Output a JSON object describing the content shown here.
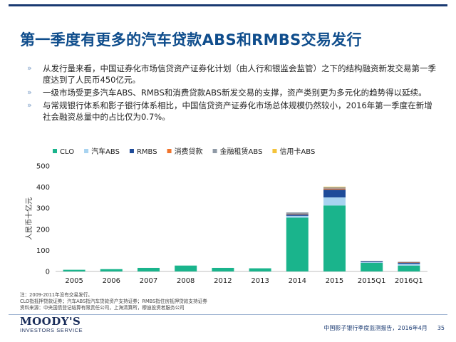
{
  "title": "第一季度有更多的汽车贷款ABS和RMBS交易发行",
  "bullets": [
    "从发行量来看，中国证券化市场信贷资产证券化计划（由人行和银监会监管）之下的结构融资新发交易第一季度达到了人民币450亿元。",
    "一级市场受更多汽车ABS、RMBS和消费贷款ABS新发交易的支撑，资产类别更为多元化的趋势得以延续。",
    "与常规银行体系和影子银行体系相比，中国信贷资产证券化市场总体规模仍然较小，2016年第一季度在新增社会融资总量中的占比仅为0.7%。"
  ],
  "bullet_marker": "»",
  "chart_data": {
    "type": "bar",
    "stacked": true,
    "categories": [
      "2005",
      "2006",
      "2007",
      "2008",
      "2012",
      "2013",
      "2014",
      "2015",
      "2015Q1",
      "2016Q1"
    ],
    "series": [
      {
        "name": "CLO",
        "color": "#1ab48c",
        "values": [
          8,
          11,
          17,
          28,
          17,
          15,
          255,
          313,
          41,
          28
        ]
      },
      {
        "name": "汽车ABS",
        "color": "#a8d3f0",
        "values": [
          0,
          0,
          0,
          0,
          0,
          0,
          9,
          38,
          3,
          8
        ]
      },
      {
        "name": "RMBS",
        "color": "#1e4b99",
        "values": [
          0,
          0,
          0,
          0,
          0,
          0,
          6,
          37,
          4,
          6
        ]
      },
      {
        "name": "消费贷款",
        "color": "#f0742c",
        "values": [
          0,
          0,
          0,
          0,
          0,
          0,
          2,
          5,
          0,
          2
        ]
      },
      {
        "name": "金融租赁ABS",
        "color": "#8f9aa6",
        "values": [
          0,
          0,
          0,
          0,
          0,
          0,
          8,
          6,
          2,
          2
        ]
      },
      {
        "name": "信用卡ABS",
        "color": "#f4c33b",
        "values": [
          0,
          0,
          0,
          0,
          0,
          0,
          0,
          3,
          0,
          0
        ]
      }
    ],
    "ylabel": "人民币十亿元",
    "ylim": [
      0,
      500
    ],
    "yticks": [
      0,
      100,
      200,
      300,
      400,
      500
    ],
    "grid": false,
    "legend_position": "top-left"
  },
  "footnotes": [
    "注：2009-2011年没有交易发行。",
    "CLO指抵押贷款证券；汽车ABS指汽车贷款资产支持证券；RMBS指住房抵押贷款支持证券",
    "资料来源：中央国债登记结算有限责任公司，上海清算所，穆迪投资者服务公司"
  ],
  "logo": {
    "line1": "MOODY'S",
    "line2": "INVESTORS SERVICE"
  },
  "footer": {
    "report": "中国影子银行季度监测报告，2016年4月",
    "page": "35"
  }
}
